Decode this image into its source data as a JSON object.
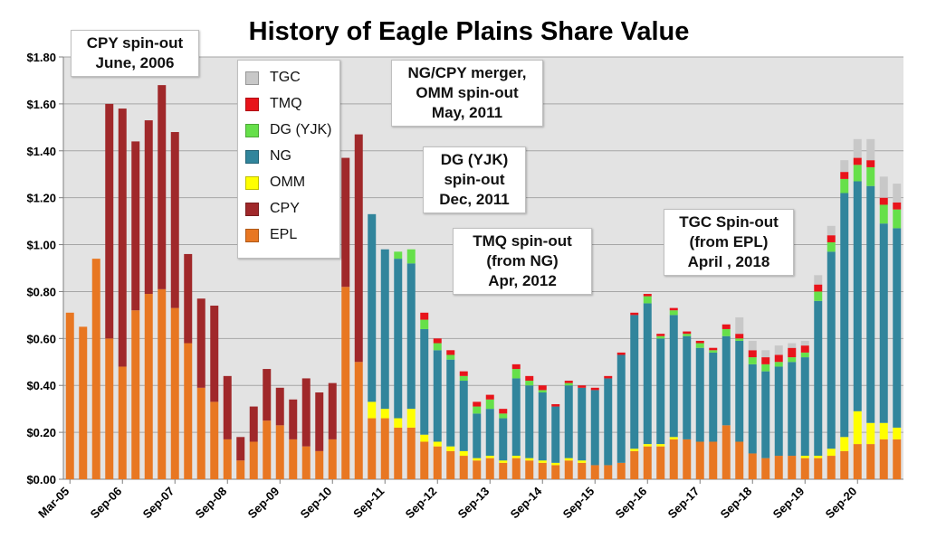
{
  "chart_data": {
    "type": "bar",
    "stacked": true,
    "title": "History of Eagle Plains Share Value",
    "xlabel": "",
    "ylabel": "",
    "ylim": [
      0,
      1.8
    ],
    "ytick_labels": [
      "$0.00",
      "$0.20",
      "$0.40",
      "$0.60",
      "$0.80",
      "$1.00",
      "$1.20",
      "$1.40",
      "$1.60",
      "$1.80"
    ],
    "ytick_values": [
      0,
      0.2,
      0.4,
      0.6,
      0.8,
      1.0,
      1.2,
      1.4,
      1.6,
      1.8
    ],
    "xtick_labels": [
      "Mar-05",
      "Sep-06",
      "Sep-07",
      "Sep-08",
      "Sep-09",
      "Sep-10",
      "Sep-11",
      "Sep-12",
      "Sep-13",
      "Sep-14",
      "Sep-15",
      "Sep-16",
      "Sep-17",
      "Sep-18",
      "Sep-19",
      "Sep-20"
    ],
    "xtick_index": [
      0,
      4,
      8,
      12,
      16,
      20,
      24,
      28,
      32,
      36,
      40,
      44,
      48,
      52,
      56,
      60
    ],
    "grid": "horizontal",
    "legend_position": "top-left",
    "series": [
      {
        "name": "EPL",
        "color": "#E87722",
        "values": [
          0.71,
          0.65,
          0.94,
          0.6,
          0.48,
          0.72,
          0.79,
          0.81,
          0.73,
          0.58,
          0.39,
          0.33,
          0.17,
          0.08,
          0.16,
          0.25,
          0.23,
          0.17,
          0.14,
          0.12,
          0.17,
          0.82,
          0.5,
          0.26,
          0.26,
          0.22,
          0.22,
          0.16,
          0.14,
          0.12,
          0.1,
          0.08,
          0.09,
          0.07,
          0.09,
          0.08,
          0.07,
          0.06,
          0.08,
          0.07,
          0.06,
          0.06,
          0.07,
          0.12,
          0.14,
          0.14,
          0.17,
          0.17,
          0.16,
          0.16,
          0.23,
          0.16,
          0.11,
          0.09,
          0.1,
          0.1,
          0.09,
          0.09,
          0.1,
          0.12,
          0.15,
          0.15,
          0.17,
          0.17
        ]
      },
      {
        "name": "CPY",
        "color": "#A0282A",
        "values": [
          0,
          0,
          0,
          1.0,
          1.1,
          0.72,
          0.74,
          0.87,
          0.75,
          0.38,
          0.38,
          0.41,
          0.27,
          0.1,
          0.15,
          0.22,
          0.16,
          0.17,
          0.29,
          0.25,
          0.24,
          0.55,
          0.97,
          0,
          0,
          0,
          0,
          0,
          0,
          0,
          0,
          0,
          0,
          0,
          0,
          0,
          0,
          0,
          0,
          0,
          0,
          0,
          0,
          0,
          0,
          0,
          0,
          0,
          0,
          0,
          0,
          0,
          0,
          0,
          0,
          0,
          0,
          0,
          0,
          0,
          0,
          0,
          0,
          0
        ]
      },
      {
        "name": "OMM",
        "color": "#FFFF00",
        "values": [
          0,
          0,
          0,
          0,
          0,
          0,
          0,
          0,
          0,
          0,
          0,
          0,
          0,
          0,
          0,
          0,
          0,
          0,
          0,
          0,
          0,
          0,
          0,
          0.07,
          0.04,
          0.04,
          0.08,
          0.03,
          0.02,
          0.02,
          0.02,
          0.01,
          0.01,
          0.01,
          0.01,
          0.01,
          0.01,
          0.01,
          0.01,
          0.01,
          0,
          0,
          0,
          0.01,
          0.01,
          0.01,
          0.01,
          0,
          0,
          0,
          0,
          0,
          0,
          0,
          0,
          0,
          0.01,
          0.01,
          0.03,
          0.06,
          0.14,
          0.09,
          0.07,
          0.05
        ]
      },
      {
        "name": "NG",
        "color": "#31859C",
        "values": [
          0,
          0,
          0,
          0,
          0,
          0,
          0,
          0,
          0,
          0,
          0,
          0,
          0,
          0,
          0,
          0,
          0,
          0,
          0,
          0,
          0,
          0,
          0,
          0.8,
          0.68,
          0.68,
          0.62,
          0.45,
          0.39,
          0.37,
          0.3,
          0.19,
          0.2,
          0.18,
          0.33,
          0.31,
          0.29,
          0.24,
          0.31,
          0.31,
          0.32,
          0.37,
          0.46,
          0.57,
          0.6,
          0.45,
          0.52,
          0.44,
          0.4,
          0.38,
          0.38,
          0.43,
          0.38,
          0.37,
          0.38,
          0.4,
          0.42,
          0.66,
          0.84,
          1.04,
          0.98,
          1.01,
          0.85,
          0.85
        ]
      },
      {
        "name": "DG (YJK)",
        "color": "#66E04A",
        "values": [
          0,
          0,
          0,
          0,
          0,
          0,
          0,
          0,
          0,
          0,
          0,
          0,
          0,
          0,
          0,
          0,
          0,
          0,
          0,
          0,
          0,
          0,
          0,
          0,
          0,
          0.03,
          0.06,
          0.04,
          0.03,
          0.02,
          0.02,
          0.03,
          0.04,
          0.02,
          0.04,
          0.02,
          0.01,
          0,
          0.01,
          0,
          0,
          0,
          0,
          0,
          0.03,
          0.01,
          0.02,
          0.01,
          0.02,
          0.01,
          0.03,
          0.01,
          0.03,
          0.03,
          0.02,
          0.02,
          0.02,
          0.04,
          0.04,
          0.06,
          0.07,
          0.08,
          0.08,
          0.08
        ]
      },
      {
        "name": "TMQ",
        "color": "#E8141B",
        "values": [
          0,
          0,
          0,
          0,
          0,
          0,
          0,
          0,
          0,
          0,
          0,
          0,
          0,
          0,
          0,
          0,
          0,
          0,
          0,
          0,
          0,
          0,
          0,
          0,
          0,
          0,
          0,
          0.03,
          0.02,
          0.02,
          0.02,
          0.02,
          0.02,
          0.02,
          0.02,
          0.02,
          0.02,
          0.01,
          0.01,
          0.01,
          0.01,
          0.01,
          0.01,
          0.01,
          0.01,
          0.01,
          0.01,
          0.01,
          0.01,
          0.01,
          0.02,
          0.02,
          0.03,
          0.03,
          0.03,
          0.04,
          0.03,
          0.03,
          0.03,
          0.03,
          0.03,
          0.03,
          0.03,
          0.03
        ]
      },
      {
        "name": "TGC",
        "color": "#C8C8C8",
        "values": [
          0,
          0,
          0,
          0,
          0,
          0,
          0,
          0,
          0,
          0,
          0,
          0,
          0,
          0,
          0,
          0,
          0,
          0,
          0,
          0,
          0,
          0,
          0,
          0,
          0,
          0,
          0,
          0,
          0,
          0,
          0,
          0,
          0,
          0,
          0,
          0,
          0,
          0,
          0,
          0,
          0,
          0,
          0,
          0,
          0,
          0,
          0,
          0,
          0,
          0,
          0,
          0.07,
          0.04,
          0.03,
          0.04,
          0.02,
          0.02,
          0.04,
          0.04,
          0.05,
          0.08,
          0.09,
          0.09,
          0.08
        ]
      }
    ],
    "legend_order": [
      "TGC",
      "TMQ",
      "DG (YJK)",
      "NG",
      "OMM",
      "CPY",
      "EPL"
    ],
    "annotations": [
      {
        "id": "cpy",
        "lines": [
          "CPY spin-out",
          "June, 2006"
        ]
      },
      {
        "id": "ngcpy",
        "lines": [
          "NG/CPY merger,",
          "OMM spin-out",
          "May, 2011"
        ]
      },
      {
        "id": "dg",
        "lines": [
          "DG (YJK)",
          "spin-out",
          "Dec, 2011"
        ]
      },
      {
        "id": "tmq",
        "lines": [
          "TMQ spin-out",
          "(from NG)",
          "Apr, 2012"
        ]
      },
      {
        "id": "tgc",
        "lines": [
          "TGC Spin-out",
          "(from EPL)",
          "April , 2018"
        ]
      }
    ]
  }
}
